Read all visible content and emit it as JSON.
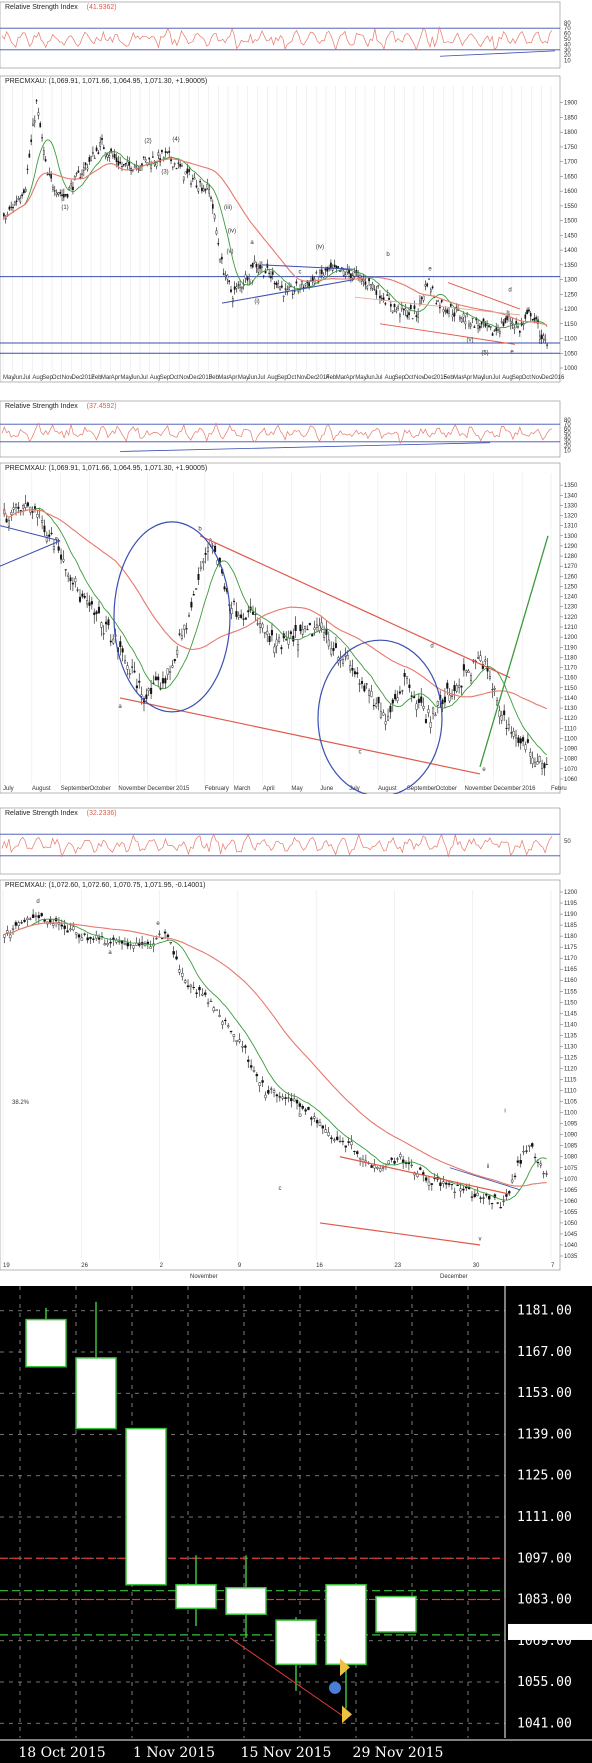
{
  "chart_data": [
    {
      "type": "line",
      "panel": "rsi-1",
      "title": "Relative Strength Index",
      "value_label": "(41.9362)",
      "ylim": [
        0,
        100
      ],
      "y_ticks": [
        "80",
        "70",
        "60",
        "50",
        "40",
        "30",
        "20",
        "10"
      ],
      "levels": [
        70,
        30
      ]
    },
    {
      "type": "candlestick",
      "panel": "price-1",
      "title": "PRECMXAU",
      "quote": "(1,069.91, 1,071.66, 1,064.95, 1,071.30, +1.90005)",
      "ylim": [
        1000,
        1950
      ],
      "y_ticks": [
        "1900",
        "1850",
        "1800",
        "1750",
        "1700",
        "1650",
        "1600",
        "1550",
        "1500",
        "1450",
        "1400",
        "1350",
        "1300",
        "1250",
        "1200",
        "1150",
        "1100",
        "1050",
        "1000"
      ],
      "x_ticks": [
        "May",
        "Jun",
        "Jul",
        "Aug",
        "Sep",
        "Oct",
        "Nov",
        "Dec",
        "2012",
        "Feb",
        "Mar",
        "Apr",
        "May",
        "Jun",
        "Jul",
        "Aug",
        "Sep",
        "Oct",
        "Nov",
        "Dec",
        "2013",
        "Feb",
        "Mar",
        "Apr",
        "May",
        "Jun",
        "Jul",
        "Aug",
        "Sep",
        "Oct",
        "Nov",
        "Dec",
        "2014",
        "Feb",
        "Mar",
        "Apr",
        "May",
        "Jun",
        "Jul",
        "Aug",
        "Sep",
        "Oct",
        "Nov",
        "Dec",
        "2015",
        "Feb",
        "Mar",
        "Apr",
        "May",
        "Jun",
        "Jul",
        "Aug",
        "Sep",
        "Oct",
        "Nov",
        "Dec",
        "2016"
      ],
      "annotations": [
        "(1)",
        "(2)",
        "(3)",
        "(4)",
        "(5)",
        "(i)",
        "(ii)",
        "(iii)",
        "(iv)",
        "(v)",
        "a",
        "b",
        "c",
        "d",
        "e"
      ],
      "levels": [
        1310,
        1085,
        1050
      ]
    },
    {
      "type": "line",
      "panel": "rsi-2",
      "title": "Relative Strength Index",
      "value_label": "(37.4592)",
      "ylim": [
        0,
        100
      ],
      "y_ticks": [
        "80",
        "70",
        "60",
        "50",
        "40",
        "30",
        "20",
        "10"
      ],
      "levels": [
        70,
        30
      ]
    },
    {
      "type": "candlestick",
      "panel": "price-2",
      "title": "PRECMXAU",
      "quote": "(1,069.91, 1,071.66, 1,064.95, 1,071.30, +1.90005)",
      "ylim": [
        1060,
        1360
      ],
      "y_ticks": [
        "1350",
        "1340",
        "1330",
        "1320",
        "1310",
        "1300",
        "1290",
        "1280",
        "1270",
        "1260",
        "1250",
        "1240",
        "1230",
        "1220",
        "1210",
        "1200",
        "1190",
        "1180",
        "1170",
        "1160",
        "1150",
        "1140",
        "1130",
        "1120",
        "1110",
        "1100",
        "1090",
        "1080",
        "1070",
        "1060"
      ],
      "x_ticks": [
        "July",
        "August",
        "September",
        "October",
        "November",
        "December",
        "2015",
        "February",
        "March",
        "April",
        "May",
        "June",
        "July",
        "August",
        "September",
        "October",
        "November",
        "December",
        "2016",
        "Febru"
      ],
      "annotations": [
        "a",
        "b",
        "c",
        "d",
        "e"
      ]
    },
    {
      "type": "line",
      "panel": "rsi-3",
      "title": "Relative Strength Index",
      "value_label": "(32.2336)",
      "y_ticks": [
        "50"
      ],
      "levels": [
        70,
        30
      ]
    },
    {
      "type": "candlestick",
      "panel": "price-3",
      "title": "PRECMXAU",
      "quote": "(1,072.60, 1,072.60, 1,070.75, 1,071.95, -0.14001)",
      "ylim": [
        1035,
        1200
      ],
      "y_ticks": [
        "1200",
        "1195",
        "1190",
        "1185",
        "1180",
        "1175",
        "1170",
        "1165",
        "1160",
        "1155",
        "1150",
        "1145",
        "1140",
        "1135",
        "1130",
        "1125",
        "1120",
        "1115",
        "1110",
        "1105",
        "1100",
        "1095",
        "1090",
        "1085",
        "1080",
        "1075",
        "1070",
        "1065",
        "1060",
        "1055",
        "1050",
        "1045",
        "1040",
        "1035"
      ],
      "x_ticks": [
        "19",
        "26",
        "2",
        "9",
        "16",
        "23",
        "30",
        "7"
      ],
      "x_months": [
        "November",
        "December"
      ],
      "fib_label": "38.2%",
      "annotations": [
        "a",
        "b",
        "c",
        "d",
        "e",
        "i",
        "ii",
        "v"
      ]
    },
    {
      "type": "candlestick",
      "panel": "weekly",
      "ylim": [
        1036,
        1186
      ],
      "y_ticks": [
        "1181.00",
        "1167.00",
        "1153.00",
        "1139.00",
        "1125.00",
        "1111.00",
        "1097.00",
        "1083.00",
        "1069.00",
        "1055.00",
        "1041.00"
      ],
      "x_ticks": [
        "18 Oct 2015",
        "1 Nov 2015",
        "15 Nov 2015",
        "29 Nov 2015"
      ],
      "last_price": "1071.98",
      "candles": [
        {
          "o": 1178,
          "h": 1182,
          "l": 1162,
          "c": 1162
        },
        {
          "o": 1165,
          "h": 1184,
          "l": 1141,
          "c": 1141
        },
        {
          "o": 1141,
          "h": 1141,
          "l": 1088,
          "c": 1088
        },
        {
          "o": 1080,
          "h": 1098,
          "l": 1074,
          "c": 1088
        },
        {
          "o": 1078,
          "h": 1098,
          "l": 1070,
          "c": 1087
        },
        {
          "o": 1061,
          "h": 1077,
          "l": 1052,
          "c": 1076
        },
        {
          "o": 1061,
          "h": 1088,
          "l": 1046,
          "c": 1088
        },
        {
          "o": 1072,
          "h": 1084,
          "l": 1072,
          "c": 1084
        }
      ],
      "levels_red": [
        1097,
        1083
      ],
      "levels_green": [
        1086,
        1071
      ]
    }
  ]
}
